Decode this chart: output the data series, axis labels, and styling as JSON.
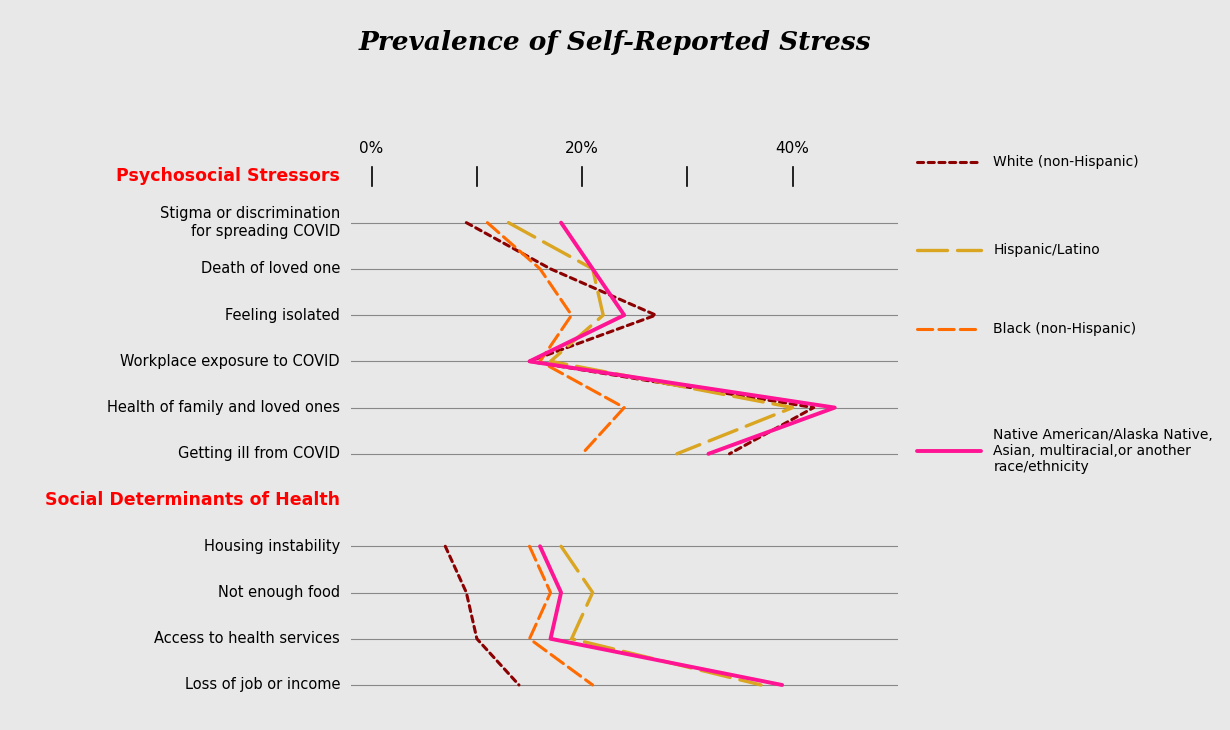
{
  "title": "Prevalence of Self-Reported Stress",
  "title_fontsize": 19,
  "title_fontweight": "bold",
  "title_fontstyle": "italic",
  "bg_color": "#e8e8e8",
  "plot_bg_color": "#ffffff",
  "x_ticks": [
    0,
    10,
    20,
    30,
    40
  ],
  "x_tick_labels": [
    "0%",
    "",
    "20%",
    "",
    "40%"
  ],
  "x_min": -2,
  "x_max": 50,
  "section_psychosocial": "Psychosocial Stressors",
  "section_social": "Social Determinants of Health",
  "categories_psychosocial": [
    "Stigma or discrimination\nfor spreading COVID",
    "Death of loved one",
    "Feeling isolated",
    "Workplace exposure to COVID",
    "Health of family and loved ones",
    "Getting ill from COVID"
  ],
  "categories_social": [
    "Housing instability",
    "Not enough food",
    "Access to health services",
    "Loss of job or income"
  ],
  "series": [
    {
      "name": "White (non-Hispanic)",
      "color": "#8B0000",
      "linestyle": "dotted",
      "linewidth": 2.2,
      "psychosocial": [
        9,
        17,
        27,
        15,
        42,
        34
      ],
      "social": [
        7,
        9,
        10,
        14
      ]
    },
    {
      "name": "Hispanic/Latino",
      "color": "#DAA520",
      "linestyle": "dashed_long",
      "linewidth": 2.4,
      "psychosocial": [
        13,
        21,
        22,
        17,
        40,
        29
      ],
      "social": [
        18,
        21,
        19,
        37
      ]
    },
    {
      "name": "Black (non-Hispanic)",
      "color": "#FF6B00",
      "linestyle": "dashed",
      "linewidth": 2.2,
      "psychosocial": [
        11,
        16,
        19,
        16,
        24,
        20
      ],
      "social": [
        15,
        17,
        15,
        21
      ]
    },
    {
      "name": "Native American/Alaska Native,\nAsian, multiracial,or another\nrace/ethnicity",
      "color": "#FF1493",
      "linestyle": "solid",
      "linewidth": 2.8,
      "psychosocial": [
        18,
        21,
        24,
        15,
        44,
        32
      ],
      "social": [
        16,
        18,
        17,
        39
      ]
    }
  ],
  "legend_entries": [
    "White (non-Hispanic)",
    "Hispanic/Latino",
    "Black (non-Hispanic)",
    "Native American/Alaska Native,\nAsian, multiracial,or another\nrace/ethnicity"
  ]
}
